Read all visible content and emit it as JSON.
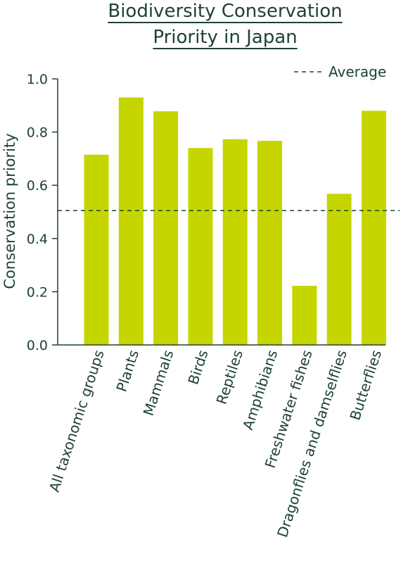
{
  "chart_data": {
    "type": "bar",
    "title_lines": [
      "Biodiversity Conservation",
      "Priority in Japan"
    ],
    "ylabel": "Conservation priority",
    "xlabel": "",
    "ylim": [
      0,
      1.0
    ],
    "yticks": [
      "0.0",
      "0.2",
      "0.4",
      "0.6",
      "0.8",
      "1.0"
    ],
    "categories": [
      "All taxonomic groups",
      "Plants",
      "Mammals",
      "Birds",
      "Reptiles",
      "Amphibians",
      "Freshwater fishes",
      "Dragonflies and damselflies",
      "Butterflies"
    ],
    "values": [
      0.715,
      0.93,
      0.878,
      0.74,
      0.773,
      0.767,
      0.222,
      0.568,
      0.88
    ],
    "average": 0.505,
    "legend": {
      "average_label": "Average",
      "placement": "top-right"
    },
    "grid": false,
    "colors": {
      "bar": "#c5d500",
      "text": "#1e4233",
      "axis": "#1e4233",
      "average_line": "#1e4233"
    }
  }
}
